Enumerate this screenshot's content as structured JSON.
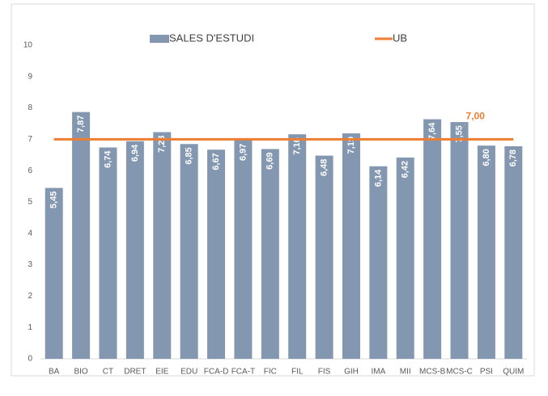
{
  "chart_data": {
    "type": "bar",
    "categories": [
      "BA",
      "BIO",
      "CT",
      "DRET",
      "EIE",
      "EDU",
      "FCA-D",
      "FCA-T",
      "FIC",
      "FIL",
      "FIS",
      "GIH",
      "IMA",
      "MII",
      "MCS-B",
      "MCS-C",
      "PSI",
      "QUIM"
    ],
    "series": [
      {
        "name": "SALES D'ESTUDI",
        "type": "bar",
        "color": "#8497b0",
        "values": [
          5.45,
          7.87,
          6.74,
          6.94,
          7.23,
          6.85,
          6.67,
          6.97,
          6.69,
          7.16,
          6.48,
          7.19,
          6.14,
          6.42,
          7.64,
          7.55,
          6.8,
          6.78
        ],
        "value_labels": [
          "5,45",
          "7,87",
          "6,74",
          "6,94",
          "7,23",
          "6,85",
          "6,67",
          "6,97",
          "6,69",
          "7,16",
          "6,48",
          "7,19",
          "6,14",
          "6,42",
          "7,64",
          "7,55",
          "6,80",
          "6,78"
        ]
      },
      {
        "name": "UB",
        "type": "line",
        "color": "#ed7d31",
        "values": [
          7,
          7,
          7,
          7,
          7,
          7,
          7,
          7,
          7,
          7,
          7,
          7,
          7,
          7,
          7,
          7,
          7,
          7
        ],
        "value_labels": [
          null,
          null,
          null,
          null,
          null,
          null,
          null,
          null,
          null,
          null,
          null,
          null,
          null,
          null,
          null,
          "7,00",
          null,
          null
        ]
      }
    ],
    "ylim": [
      0,
      10
    ],
    "yticks": [
      0,
      1,
      2,
      3,
      4,
      5,
      6,
      7,
      8,
      9,
      10
    ],
    "grid": false,
    "legend": "top"
  }
}
